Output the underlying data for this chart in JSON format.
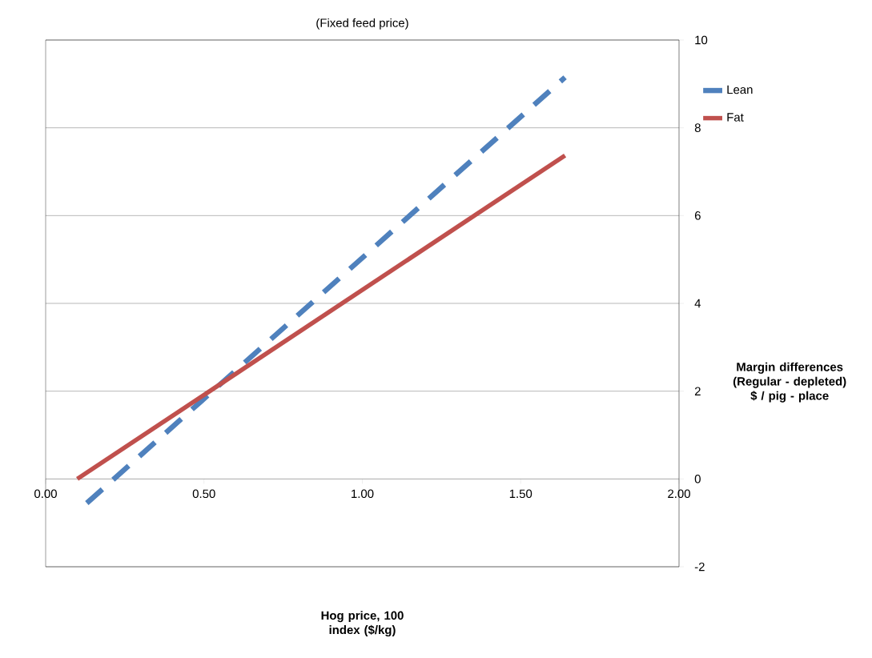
{
  "chart_data": {
    "type": "line",
    "title": "(Fixed feed price)",
    "xlabel": "Hog price, 100 index ($/kg)",
    "ylabel": "Margin differences (Regular - depleted) $ / pig - place",
    "series": [
      {
        "name": "Lean",
        "color": "#4f81bd",
        "line_style": "dashed",
        "x": [
          0.13,
          1.64
        ],
        "values": [
          -0.55,
          9.15
        ]
      },
      {
        "name": "Fat",
        "color": "#c0504d",
        "line_style": "solid",
        "x": [
          0.1,
          1.64
        ],
        "values": [
          0,
          7.37
        ]
      }
    ],
    "xlim": [
      0,
      2
    ],
    "ylim": [
      -2,
      10
    ],
    "xticks": [
      {
        "value": 0,
        "label": "0.00"
      },
      {
        "value": 0.5,
        "label": "0.50"
      },
      {
        "value": 1,
        "label": "1.00"
      },
      {
        "value": 1.5,
        "label": "1.50"
      },
      {
        "value": 2,
        "label": "2.00"
      }
    ],
    "yticks": [
      -2,
      0,
      2,
      4,
      6,
      8,
      10
    ],
    "grid": "y",
    "legend": "right",
    "marker": "none"
  }
}
